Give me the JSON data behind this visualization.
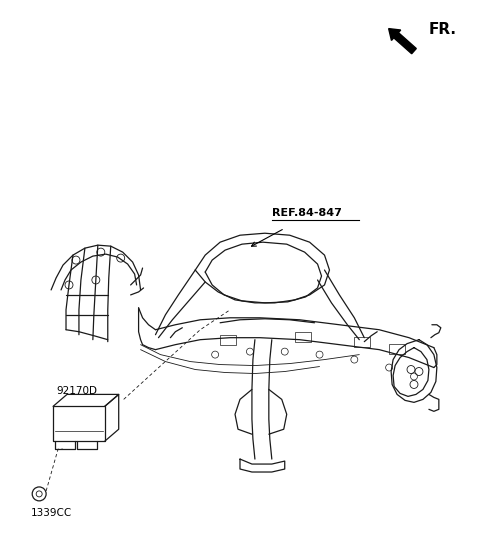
{
  "background_color": "#ffffff",
  "fr_label": "FR.",
  "part_label_92170D": "92170D",
  "part_label_1339CC": "1339CC",
  "ref_label": "REF.84-847",
  "line_color": "#1a1a1a",
  "text_color": "#000000",
  "fig_width": 4.8,
  "fig_height": 5.53,
  "dpi": 100
}
